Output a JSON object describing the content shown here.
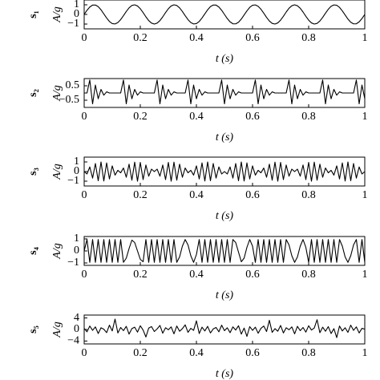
{
  "chart_data": [
    {
      "type": "line",
      "signal_label": "s₁",
      "ylabel": "A/g",
      "xlabel": "t (s)",
      "color": "#000000",
      "xlim": [
        0,
        1
      ],
      "xticks": [
        0,
        0.2,
        0.4,
        0.6,
        0.8,
        1
      ],
      "ylim": [
        -1.5,
        1.5
      ],
      "yticks": [
        {
          "value": -1,
          "label": "−1"
        },
        0,
        1
      ],
      "x": [
        0,
        0.01,
        0.02,
        0.03,
        0.04,
        0.05,
        0.06,
        0.07,
        0.08,
        0.09,
        0.1,
        0.11,
        0.12,
        0.13,
        0.14,
        0.15,
        0.16,
        0.17,
        0.18,
        0.19,
        0.2,
        0.21,
        0.22,
        0.23,
        0.24,
        0.25,
        0.26,
        0.27,
        0.28,
        0.29,
        0.3,
        0.31,
        0.32,
        0.33,
        0.34,
        0.35,
        0.36,
        0.37,
        0.38,
        0.39,
        0.4,
        0.41,
        0.42,
        0.43,
        0.44,
        0.45,
        0.46,
        0.47,
        0.48,
        0.49,
        0.5,
        0.51,
        0.52,
        0.53,
        0.54,
        0.55,
        0.56,
        0.57,
        0.58,
        0.59,
        0.6,
        0.61,
        0.62,
        0.63,
        0.64,
        0.65,
        0.66,
        0.67,
        0.68,
        0.69,
        0.7,
        0.71,
        0.72,
        0.73,
        0.74,
        0.75,
        0.76,
        0.77,
        0.78,
        0.79,
        0.8,
        0.81,
        0.82,
        0.83,
        0.84,
        0.85,
        0.86,
        0.87,
        0.88,
        0.89,
        0.9,
        0.91,
        0.92,
        0.93,
        0.94,
        0.95,
        0.96,
        0.97,
        0.98,
        0.99,
        1
      ],
      "values": [
        0,
        0.43,
        0.77,
        0.97,
        0.98,
        0.81,
        0.48,
        0.06,
        -0.37,
        -0.73,
        -0.95,
        -0.99,
        -0.84,
        -0.54,
        -0.13,
        0.31,
        0.68,
        0.93,
        1,
        0.88,
        0.59,
        0.19,
        -0.25,
        -0.64,
        -0.9,
        -1,
        -0.9,
        -0.64,
        -0.25,
        0.19,
        0.59,
        0.88,
        1,
        0.93,
        0.68,
        0.31,
        -0.13,
        -0.54,
        -0.84,
        -0.99,
        -0.95,
        -0.73,
        -0.37,
        0.06,
        0.48,
        0.81,
        0.98,
        0.97,
        0.77,
        0.43,
        0,
        -0.43,
        -0.77,
        -0.97,
        -0.98,
        -0.81,
        -0.48,
        -0.06,
        0.37,
        0.73,
        0.95,
        0.99,
        0.84,
        0.54,
        0.13,
        -0.31,
        -0.68,
        -0.93,
        -1,
        -0.88,
        -0.59,
        -0.19,
        0.25,
        0.64,
        0.9,
        1,
        0.9,
        0.64,
        0.25,
        -0.19,
        -0.59,
        -0.88,
        -1,
        -0.93,
        -0.68,
        -0.31,
        0.13,
        0.54,
        0.84,
        0.99,
        0.95,
        0.73,
        0.37,
        -0.06,
        -0.48,
        -0.81,
        -0.98,
        -0.97,
        -0.77,
        -0.43,
        0
      ]
    },
    {
      "type": "line",
      "signal_label": "s₂",
      "ylabel": "A/g",
      "xlabel": "t (s)",
      "color": "#000000",
      "xlim": [
        0,
        1
      ],
      "xticks": [
        0,
        0.2,
        0.4,
        0.6,
        0.8,
        1
      ],
      "ylim": [
        -1,
        1
      ],
      "yticks": [
        {
          "value": -0.5,
          "label": "−0.5"
        },
        0.5
      ],
      "x": [
        0,
        0.01,
        0.02,
        0.03,
        0.04,
        0.05,
        0.06,
        0.07,
        0.08,
        0.09,
        0.1,
        0.11,
        0.12,
        0.13,
        0.14,
        0.15,
        0.16,
        0.17,
        0.18,
        0.19,
        0.2,
        0.21,
        0.22,
        0.23,
        0.24,
        0.25,
        0.26,
        0.27,
        0.28,
        0.29,
        0.3,
        0.31,
        0.32,
        0.33,
        0.34,
        0.35,
        0.36,
        0.37,
        0.38,
        0.39,
        0.4,
        0.41,
        0.42,
        0.43,
        0.44,
        0.45,
        0.46,
        0.47,
        0.48,
        0.49,
        0.5,
        0.51,
        0.52,
        0.53,
        0.54,
        0.55,
        0.56,
        0.57,
        0.58,
        0.59,
        0.6,
        0.61,
        0.62,
        0.63,
        0.64,
        0.65,
        0.66,
        0.67,
        0.68,
        0.69,
        0.7,
        0.71,
        0.72,
        0.73,
        0.74,
        0.75,
        0.76,
        0.77,
        0.78,
        0.79,
        0.8,
        0.81,
        0.82,
        0.83,
        0.84,
        0.85,
        0.86,
        0.87,
        0.88,
        0.89,
        0.9,
        0.91,
        0.92,
        0.93,
        0.94,
        0.95,
        0.96,
        0.97,
        0.98,
        0.99,
        1
      ],
      "values": [
        0,
        0,
        0.9,
        -0.75,
        0.55,
        -0.4,
        0.25,
        -0.15,
        0.08,
        0,
        0,
        0,
        0,
        0,
        0.9,
        -0.75,
        0.55,
        -0.4,
        0.25,
        -0.15,
        0.08,
        0,
        0,
        0,
        0,
        0,
        0.9,
        -0.75,
        0.55,
        -0.4,
        0.25,
        -0.15,
        0.08,
        0,
        0,
        0,
        0,
        0.9,
        -0.75,
        0.55,
        -0.4,
        0.25,
        -0.15,
        0.08,
        0,
        0,
        0,
        0,
        0,
        0.9,
        -0.75,
        0.55,
        -0.4,
        0.25,
        -0.15,
        0.08,
        0,
        0,
        0,
        0,
        0,
        0.9,
        -0.75,
        0.55,
        -0.4,
        0.25,
        -0.15,
        0.08,
        0,
        0,
        0,
        0,
        0,
        0.9,
        -0.75,
        0.55,
        -0.4,
        0.25,
        -0.15,
        0.08,
        0,
        0,
        0,
        0,
        0,
        0.9,
        -0.75,
        0.55,
        -0.4,
        0.25,
        -0.15,
        0.08,
        0,
        0,
        0,
        0,
        0,
        0.9,
        -0.75,
        0.55,
        -0.4
      ]
    },
    {
      "type": "line",
      "signal_label": "s₃",
      "ylabel": "A/g",
      "xlabel": "t (s)",
      "color": "#000000",
      "xlim": [
        0,
        1
      ],
      "xticks": [
        0,
        0.2,
        0.4,
        0.6,
        0.8,
        1
      ],
      "ylim": [
        -1.5,
        1.5
      ],
      "yticks": [
        {
          "value": -1,
          "label": "−1"
        },
        0,
        1
      ],
      "x": [
        0,
        0.01,
        0.02,
        0.03,
        0.04,
        0.05,
        0.06,
        0.07,
        0.08,
        0.09,
        0.1,
        0.11,
        0.12,
        0.13,
        0.14,
        0.15,
        0.16,
        0.17,
        0.18,
        0.19,
        0.2,
        0.21,
        0.22,
        0.23,
        0.24,
        0.25,
        0.26,
        0.27,
        0.28,
        0.29,
        0.3,
        0.31,
        0.32,
        0.33,
        0.34,
        0.35,
        0.36,
        0.37,
        0.38,
        0.39,
        0.4,
        0.41,
        0.42,
        0.43,
        0.44,
        0.45,
        0.46,
        0.47,
        0.48,
        0.49,
        0.5,
        0.51,
        0.52,
        0.53,
        0.54,
        0.55,
        0.56,
        0.57,
        0.58,
        0.59,
        0.6,
        0.61,
        0.62,
        0.63,
        0.64,
        0.65,
        0.66,
        0.67,
        0.68,
        0.69,
        0.7,
        0.71,
        0.72,
        0.73,
        0.74,
        0.75,
        0.76,
        0.77,
        0.78,
        0.79,
        0.8,
        0.81,
        0.82,
        0.83,
        0.84,
        0.85,
        0.86,
        0.87,
        0.88,
        0.89,
        0.9,
        0.91,
        0.92,
        0.93,
        0.94,
        0.95,
        0.96,
        0.97,
        0.98,
        0.99,
        1
      ],
      "values": [
        0,
        -0.25,
        0.48,
        -0.68,
        0.84,
        -0.95,
        1,
        -0.98,
        0.9,
        -0.77,
        0.59,
        -0.37,
        0.13,
        -0.13,
        0.37,
        -0.59,
        0.77,
        -0.9,
        0.98,
        -1,
        0.95,
        -0.84,
        0.68,
        -0.48,
        0.25,
        0,
        0.25,
        -0.48,
        0.68,
        -0.84,
        0.95,
        -1,
        0.98,
        -0.9,
        0.77,
        -0.59,
        0.37,
        -0.13,
        0.13,
        -0.37,
        0.59,
        -0.77,
        0.9,
        -0.98,
        1,
        -0.95,
        0.84,
        -0.68,
        0.48,
        -0.25,
        0,
        -0.25,
        0.48,
        -0.68,
        0.84,
        -0.95,
        1,
        -0.98,
        0.9,
        -0.77,
        0.59,
        -0.37,
        0.13,
        -0.13,
        0.37,
        -0.59,
        0.77,
        -0.9,
        0.98,
        -1,
        0.95,
        -0.84,
        0.68,
        -0.48,
        0.25,
        0,
        0.25,
        -0.48,
        0.68,
        -0.84,
        0.95,
        -1,
        0.98,
        -0.9,
        0.77,
        -0.59,
        0.37,
        -0.13,
        0.13,
        -0.37,
        0.59,
        -0.77,
        0.9,
        -0.98,
        1,
        -0.95,
        0.84,
        -0.68,
        0.48,
        -0.25,
        0
      ]
    },
    {
      "type": "line",
      "signal_label": "s₄",
      "ylabel": "A/g",
      "xlabel": "t (s)",
      "color": "#000000",
      "xlim": [
        0,
        1
      ],
      "xticks": [
        0,
        0.2,
        0.4,
        0.6,
        0.8,
        1
      ],
      "ylim": [
        -1.2,
        1.2
      ],
      "yticks": [
        {
          "value": -1,
          "label": "−1"
        },
        0,
        1
      ],
      "x": [
        0,
        0.01,
        0.02,
        0.03,
        0.04,
        0.05,
        0.06,
        0.07,
        0.08,
        0.09,
        0.1,
        0.11,
        0.12,
        0.13,
        0.14,
        0.15,
        0.16,
        0.17,
        0.18,
        0.19,
        0.2,
        0.21,
        0.22,
        0.23,
        0.24,
        0.25,
        0.26,
        0.27,
        0.28,
        0.29,
        0.3,
        0.31,
        0.32,
        0.33,
        0.34,
        0.35,
        0.36,
        0.37,
        0.38,
        0.39,
        0.4,
        0.41,
        0.42,
        0.43,
        0.44,
        0.45,
        0.46,
        0.47,
        0.48,
        0.49,
        0.5,
        0.51,
        0.52,
        0.53,
        0.54,
        0.55,
        0.56,
        0.57,
        0.58,
        0.59,
        0.6,
        0.61,
        0.62,
        0.63,
        0.64,
        0.65,
        0.66,
        0.67,
        0.68,
        0.69,
        0.7,
        0.71,
        0.72,
        0.73,
        0.74,
        0.75,
        0.76,
        0.77,
        0.78,
        0.79,
        0.8,
        0.81,
        0.82,
        0.83,
        0.84,
        0.85,
        0.86,
        0.87,
        0.88,
        0.89,
        0.9,
        0.91,
        0.92,
        0.93,
        0.94,
        0.95,
        0.96,
        0.97,
        0.98,
        0.99,
        1
      ],
      "values": [
        0,
        0.95,
        -0.95,
        0.95,
        -0.95,
        0.95,
        -0.95,
        0.95,
        -0.95,
        0.95,
        -0.95,
        0.95,
        -0.95,
        0.95,
        -0.95,
        -0.6,
        0.2,
        0.9,
        0.7,
        0,
        -0.7,
        -0.9,
        0.95,
        -0.95,
        0.95,
        -0.95,
        0.95,
        -0.95,
        0.95,
        -0.95,
        0.95,
        -0.95,
        0.95,
        -0.95,
        -0.5,
        0.4,
        0.95,
        0.5,
        -0.4,
        -0.95,
        -0.3,
        0.95,
        -0.95,
        0.95,
        -0.95,
        0.95,
        -0.95,
        0.95,
        -0.95,
        0.95,
        -0.95,
        0.95,
        -0.95,
        0.95,
        0.7,
        -0.1,
        -0.9,
        -0.6,
        0.3,
        0.95,
        0.4,
        -0.95,
        0.95,
        -0.95,
        0.95,
        -0.95,
        0.95,
        -0.95,
        0.95,
        -0.95,
        0.95,
        -0.95,
        0.95,
        0.5,
        -0.4,
        -0.95,
        -0.5,
        0.4,
        0.95,
        0.3,
        -0.95,
        0.95,
        -0.95,
        0.95,
        -0.95,
        0.95,
        -0.95,
        0.95,
        -0.95,
        0.95,
        -0.95,
        0.95,
        0.4,
        -0.5,
        -0.95,
        -0.4,
        0.5,
        0.95,
        -0.95,
        0.95,
        -0.95
      ]
    },
    {
      "type": "line",
      "signal_label": "s₅",
      "ylabel": "A/g",
      "xlabel": "t (s)",
      "color": "#000000",
      "xlim": [
        0,
        1
      ],
      "xticks": [
        0,
        0.2,
        0.4,
        0.6,
        0.8,
        1
      ],
      "ylim": [
        -5,
        5
      ],
      "yticks": [
        {
          "value": -4,
          "label": "−4"
        },
        0,
        4
      ],
      "x": [
        0,
        0.01,
        0.02,
        0.03,
        0.04,
        0.05,
        0.06,
        0.07,
        0.08,
        0.09,
        0.1,
        0.11,
        0.12,
        0.13,
        0.14,
        0.15,
        0.16,
        0.17,
        0.18,
        0.19,
        0.2,
        0.21,
        0.22,
        0.23,
        0.24,
        0.25,
        0.26,
        0.27,
        0.28,
        0.29,
        0.3,
        0.31,
        0.32,
        0.33,
        0.34,
        0.35,
        0.36,
        0.37,
        0.38,
        0.39,
        0.4,
        0.41,
        0.42,
        0.43,
        0.44,
        0.45,
        0.46,
        0.47,
        0.48,
        0.49,
        0.5,
        0.51,
        0.52,
        0.53,
        0.54,
        0.55,
        0.56,
        0.57,
        0.58,
        0.59,
        0.6,
        0.61,
        0.62,
        0.63,
        0.64,
        0.65,
        0.66,
        0.67,
        0.68,
        0.69,
        0.7,
        0.71,
        0.72,
        0.73,
        0.74,
        0.75,
        0.76,
        0.77,
        0.78,
        0.79,
        0.8,
        0.81,
        0.82,
        0.83,
        0.84,
        0.85,
        0.86,
        0.87,
        0.88,
        0.89,
        0.9,
        0.91,
        0.92,
        0.93,
        0.94,
        0.95,
        0.96,
        0.97,
        0.98,
        0.99,
        1
      ],
      "values": [
        0.4,
        -0.8,
        1.2,
        -0.3,
        0.9,
        -1.4,
        0.6,
        0.1,
        -1.1,
        1.5,
        -0.5,
        3.6,
        -1.2,
        0.7,
        -0.4,
        1.1,
        -1.6,
        0.3,
        0.8,
        -0.9,
        1.3,
        -0.2,
        -2.6,
        0.5,
        1.0,
        -0.7,
        0.2,
        1.4,
        -1.3,
        0.6,
        -0.1,
        0.9,
        -1.5,
        1.2,
        -0.6,
        0.3,
        1.6,
        -1.0,
        0.4,
        -0.3,
        3.0,
        -1.4,
        0.8,
        -0.5,
        1.1,
        -1.2,
        0.2,
        0.7,
        -0.8,
        1.5,
        -0.4,
        0.6,
        -1.1,
        0.9,
        -0.2,
        1.3,
        -1.6,
        0.5,
        -2.4,
        1.0,
        -0.3,
        0.8,
        -1.3,
        0.4,
        1.2,
        -0.7,
        3.2,
        -1.0,
        0.3,
        -0.6,
        1.4,
        -1.2,
        0.6,
        -0.1,
        0.9,
        -1.5,
        1.1,
        -0.4,
        0.7,
        -0.9,
        1.3,
        -0.2,
        0.5,
        3.4,
        -1.1,
        0.8,
        -0.6,
        1.0,
        -1.4,
        0.3,
        -2.8,
        1.2,
        -0.5,
        0.6,
        -1.0,
        1.5,
        -0.3,
        0.9,
        -1.2,
        0.4,
        0.1
      ]
    }
  ]
}
